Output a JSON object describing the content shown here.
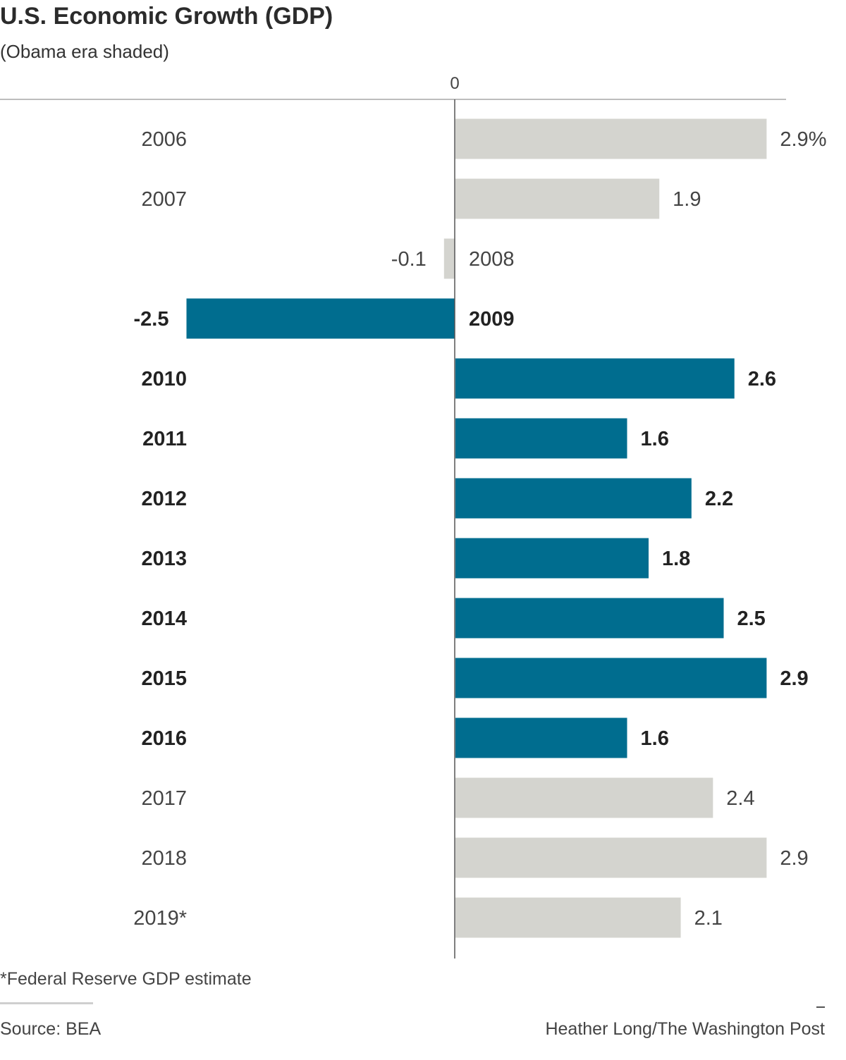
{
  "header": {
    "title": "U.S. Economic Growth (GDP)",
    "subtitle": "(Obama era shaded)"
  },
  "footer": {
    "footnote": "*Federal Reserve GDP estimate",
    "source": "Source: BEA",
    "credit": "Heather Long/The Washington Post"
  },
  "colors": {
    "highlight": "#006d8f",
    "base": "#d4d4cf"
  },
  "chart_data": {
    "type": "bar",
    "orientation": "horizontal",
    "title": "U.S. Economic Growth (GDP)",
    "subtitle": "(Obama era shaded)",
    "zero_label": "0",
    "xlim": [
      -2.5,
      2.9
    ],
    "unit_suffix": "%",
    "categories": [
      "2006",
      "2007",
      "2008",
      "2009",
      "2010",
      "2011",
      "2012",
      "2013",
      "2014",
      "2015",
      "2016",
      "2017",
      "2018",
      "2019*"
    ],
    "values": [
      2.9,
      1.9,
      -0.1,
      -2.5,
      2.6,
      1.6,
      2.2,
      1.8,
      2.5,
      2.9,
      1.6,
      2.4,
      2.9,
      2.1
    ],
    "value_labels": [
      "2.9%",
      "1.9",
      "-0.1",
      "-2.5",
      "2.6",
      "1.6",
      "2.2",
      "1.8",
      "2.5",
      "2.9",
      "1.6",
      "2.4",
      "2.9",
      "2.1"
    ],
    "highlighted": [
      false,
      false,
      false,
      true,
      true,
      true,
      true,
      true,
      true,
      true,
      true,
      false,
      false,
      false
    ],
    "highlight_meaning": "Obama era"
  }
}
